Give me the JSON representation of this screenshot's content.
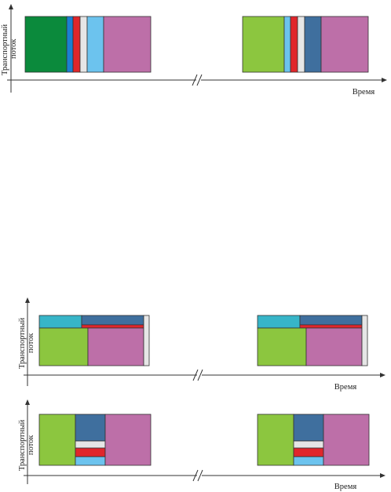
{
  "labels": {
    "y_axis_line1": "Транспортный",
    "y_axis_line2": "поток",
    "x_axis": "Время"
  },
  "colors": {
    "dark_green": "#0b8a3c",
    "light_green": "#8cc63f",
    "blue": "#1b7fd2",
    "red": "#e0262b",
    "white_gray": "#e6e6e6",
    "light_blue": "#6cc3ee",
    "mauve": "#bd6fa8",
    "steel_blue": "#3f6f9e",
    "teal": "#37b5c8",
    "stroke": "#333333"
  },
  "diagrams": [
    {
      "id": "diagram-1",
      "groups": [
        {
          "blocks": [
            "dark_green",
            "blue",
            "red",
            "white_gray",
            "light_blue",
            "mauve"
          ]
        },
        {
          "blocks": [
            "light_green",
            "light_blue",
            "red",
            "white_gray",
            "steel_blue",
            "mauve"
          ]
        }
      ]
    },
    {
      "id": "diagram-2",
      "groups": [
        {
          "blocks": [
            "teal",
            "steel_blue",
            "red",
            "light_green",
            "mauve",
            "white_gray"
          ]
        },
        {
          "blocks": [
            "teal",
            "steel_blue",
            "red",
            "light_green",
            "mauve",
            "white_gray"
          ]
        }
      ]
    },
    {
      "id": "diagram-3",
      "groups": [
        {
          "blocks": [
            "light_green",
            "steel_blue",
            "white_gray",
            "red",
            "light_blue",
            "mauve"
          ]
        },
        {
          "blocks": [
            "light_green",
            "steel_blue",
            "white_gray",
            "red",
            "light_blue",
            "mauve"
          ]
        }
      ]
    }
  ]
}
